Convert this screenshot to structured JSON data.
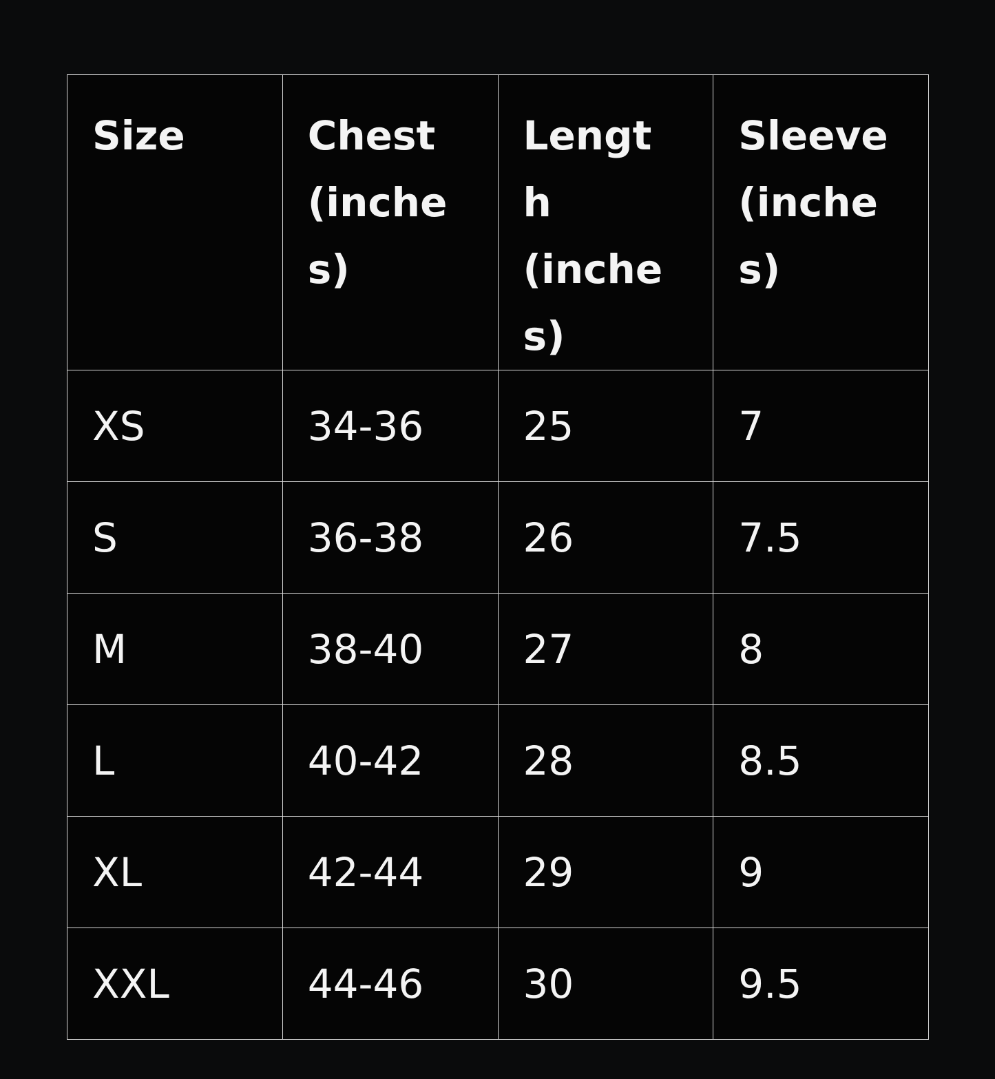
{
  "table": {
    "header": [
      "Size",
      "Chest (inches)",
      "Length (inches)",
      "Sleeve (inches)"
    ],
    "rows": [
      [
        "XS",
        "34-36",
        "25",
        "7"
      ],
      [
        "S",
        "36-38",
        "26",
        "7.5"
      ],
      [
        "M",
        "38-40",
        "27",
        "8"
      ],
      [
        "L",
        "40-42",
        "28",
        "8.5"
      ],
      [
        "XL",
        "42-44",
        "29",
        "9"
      ],
      [
        "XXL",
        "44-46",
        "30",
        "9.5"
      ]
    ]
  }
}
